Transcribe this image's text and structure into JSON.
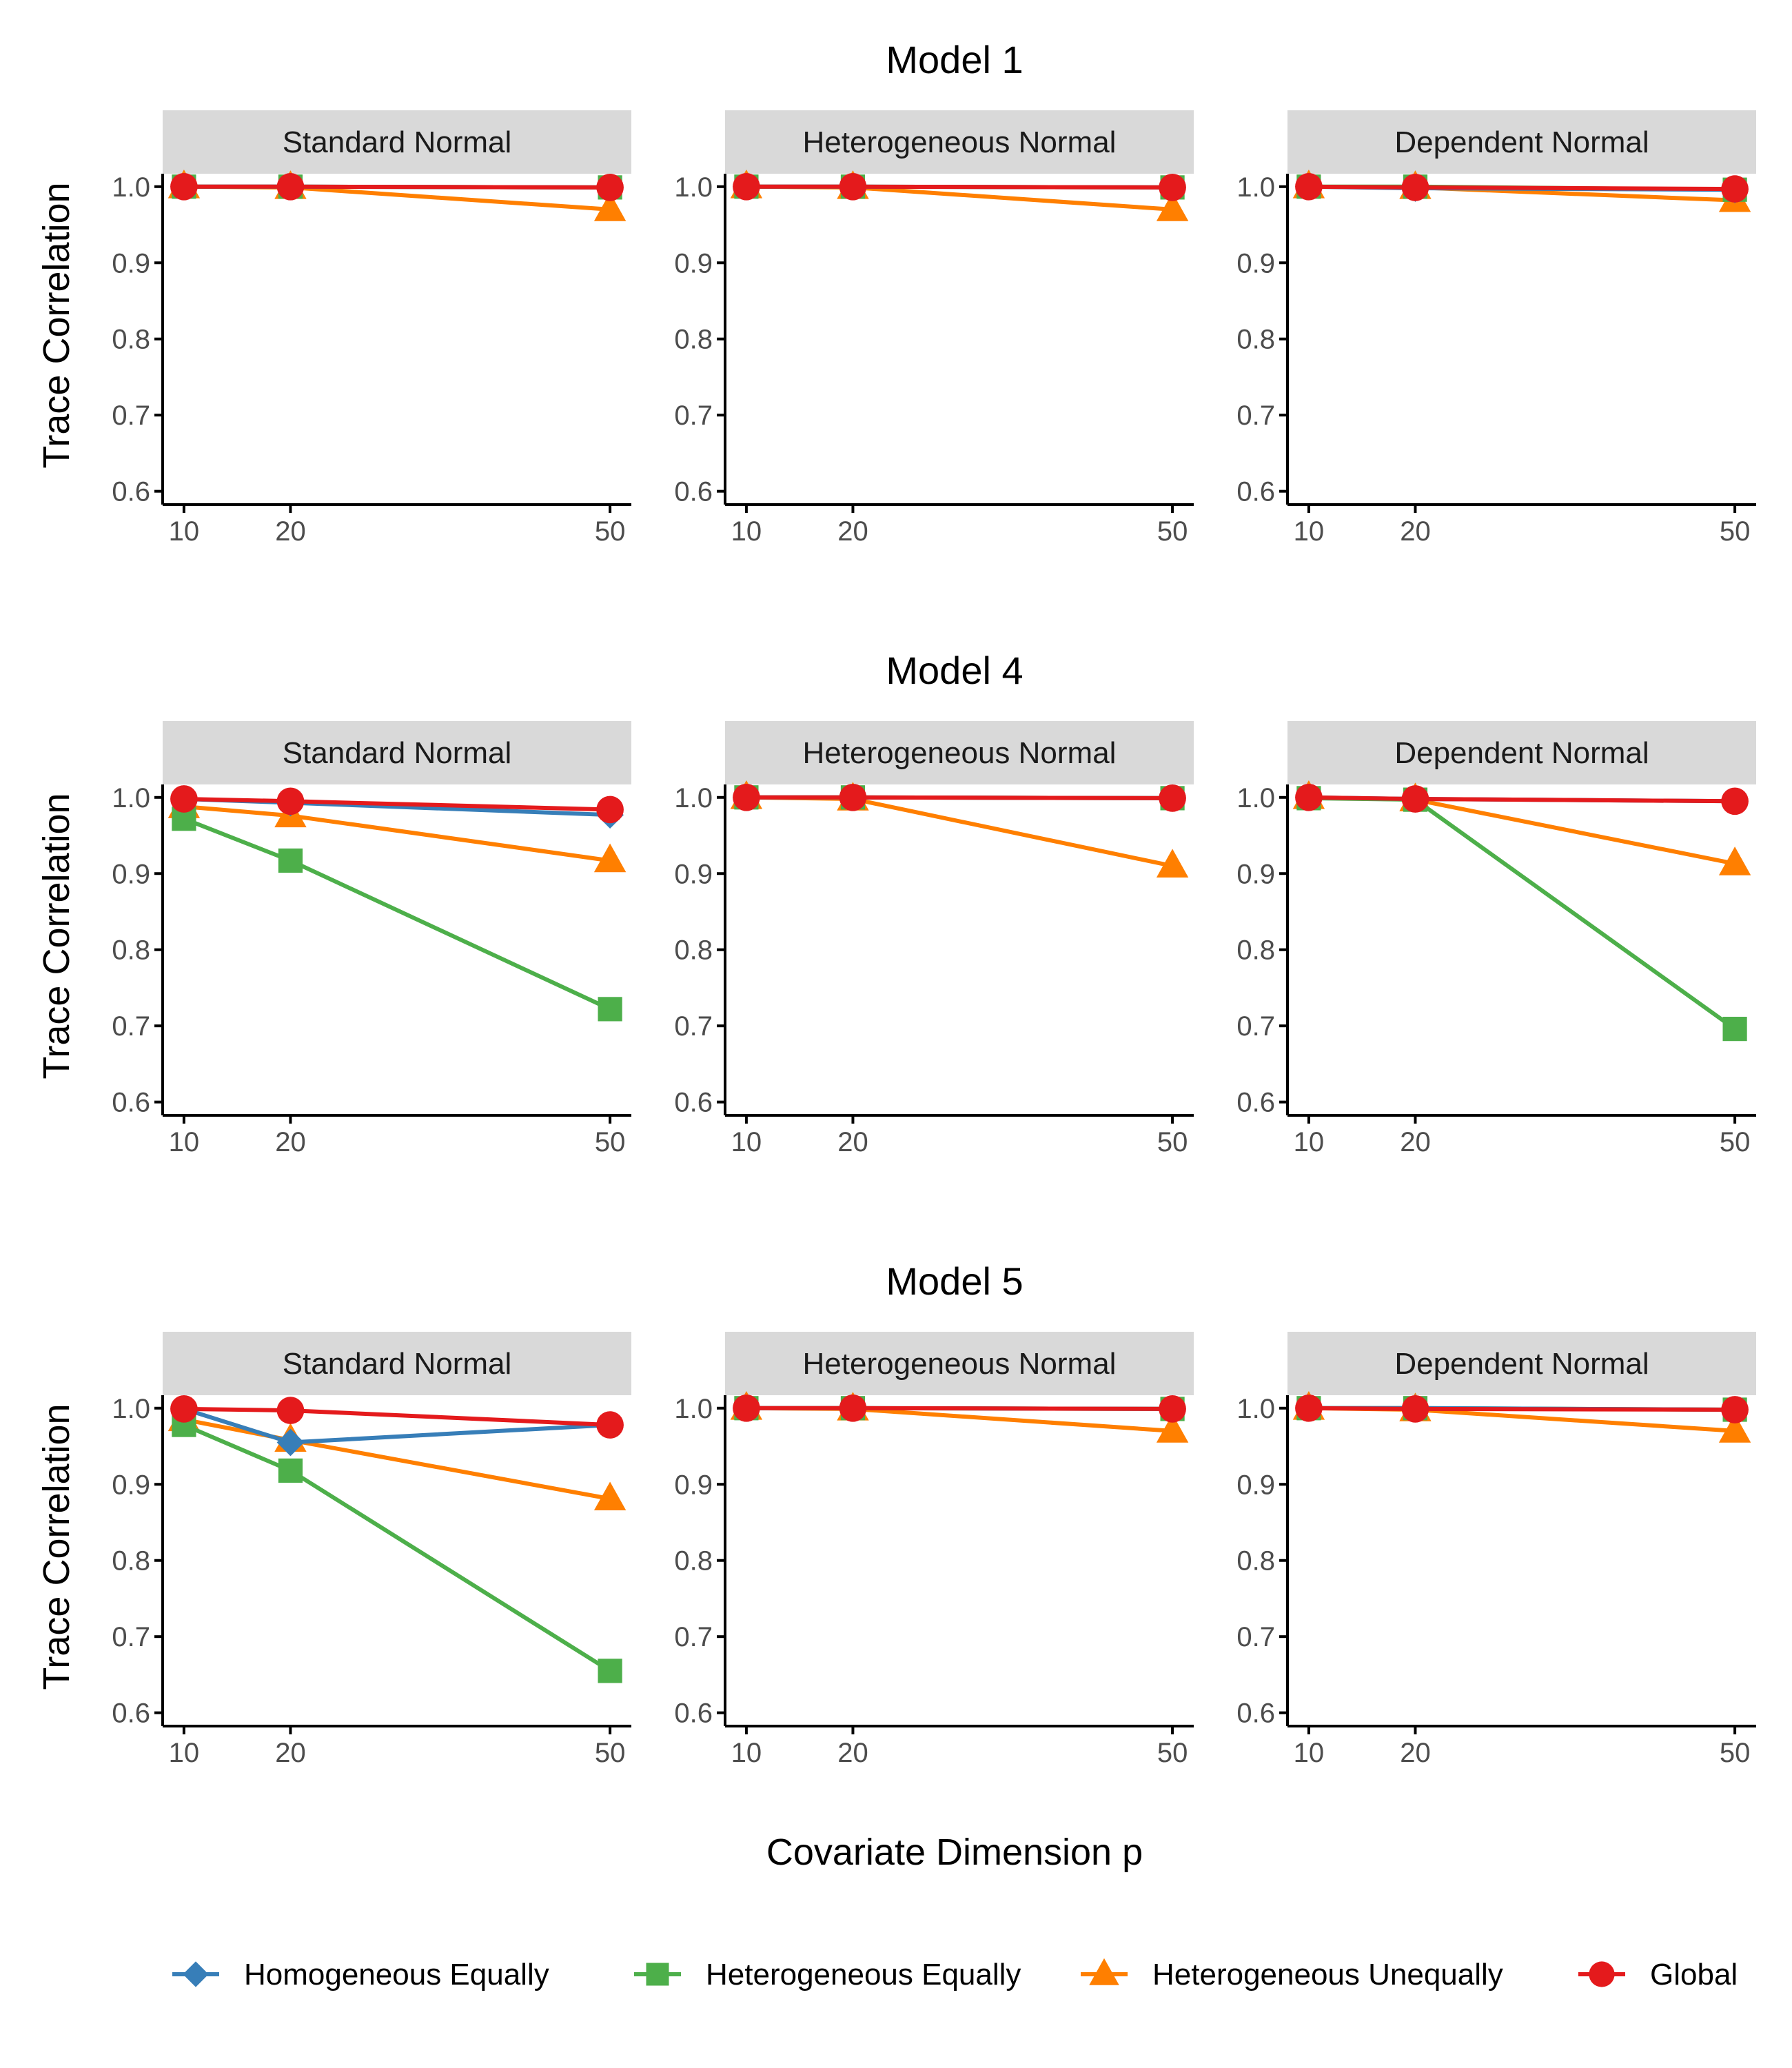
{
  "figure": {
    "xlabel": "Covariate Dimension p",
    "ylabel": "Trace Correlation"
  },
  "legend": {
    "placement": "bottom",
    "items": [
      {
        "name": "Homogeneous Equally",
        "color": "#377eb8",
        "marker": "diamond"
      },
      {
        "name": "Heterogeneous Equally",
        "color": "#4daf4a",
        "marker": "square"
      },
      {
        "name": "Heterogeneous Unequally",
        "color": "#ff7f00",
        "marker": "triangle"
      },
      {
        "name": "Global",
        "color": "#e41a1c",
        "marker": "circle"
      }
    ]
  },
  "chart_data": [
    {
      "type": "line",
      "title": "Model 1",
      "facets": [
        {
          "label": "Standard Normal",
          "x": [
            10,
            20,
            50
          ],
          "xlim": [
            8,
            52
          ],
          "ylim": [
            0.58,
            1.0
          ],
          "xticks": [
            "10",
            "20",
            "50"
          ],
          "yticks": [
            "0.6",
            "0.7",
            "0.8",
            "0.9",
            "1.0"
          ],
          "series": [
            {
              "name": "Homogeneous Equally",
              "values": [
                1.0,
                1.0,
                0.999
              ]
            },
            {
              "name": "Heterogeneous Equally",
              "values": [
                1.0,
                1.0,
                0.999
              ]
            },
            {
              "name": "Heterogeneous Unequally",
              "values": [
                1.0,
                0.999,
                0.97
              ]
            },
            {
              "name": "Global",
              "values": [
                1.0,
                1.0,
                0.999
              ]
            }
          ]
        },
        {
          "label": "Heterogeneous Normal",
          "x": [
            10,
            20,
            50
          ],
          "xlim": [
            8,
            52
          ],
          "ylim": [
            0.58,
            1.0
          ],
          "xticks": [
            "10",
            "20",
            "50"
          ],
          "yticks": [
            "0.6",
            "0.7",
            "0.8",
            "0.9",
            "1.0"
          ],
          "series": [
            {
              "name": "Homogeneous Equally",
              "values": [
                1.0,
                1.0,
                0.999
              ]
            },
            {
              "name": "Heterogeneous Equally",
              "values": [
                1.0,
                1.0,
                0.999
              ]
            },
            {
              "name": "Heterogeneous Unequally",
              "values": [
                1.0,
                0.999,
                0.97
              ]
            },
            {
              "name": "Global",
              "values": [
                1.0,
                1.0,
                0.999
              ]
            }
          ]
        },
        {
          "label": "Dependent Normal",
          "x": [
            10,
            20,
            50
          ],
          "xlim": [
            8,
            52
          ],
          "ylim": [
            0.58,
            1.0
          ],
          "xticks": [
            "10",
            "20",
            "50"
          ],
          "yticks": [
            "0.6",
            "0.7",
            "0.8",
            "0.9",
            "1.0"
          ],
          "series": [
            {
              "name": "Homogeneous Equally",
              "values": [
                1.0,
                0.998,
                0.996
              ]
            },
            {
              "name": "Heterogeneous Equally",
              "values": [
                1.0,
                1.0,
                0.996
              ]
            },
            {
              "name": "Heterogeneous Unequally",
              "values": [
                1.0,
                0.999,
                0.982
              ]
            },
            {
              "name": "Global",
              "values": [
                1.0,
                0.999,
                0.997
              ]
            }
          ]
        }
      ]
    },
    {
      "type": "line",
      "title": "Model 4",
      "facets": [
        {
          "label": "Standard Normal",
          "x": [
            10,
            20,
            50
          ],
          "xlim": [
            8,
            52
          ],
          "ylim": [
            0.58,
            1.0
          ],
          "xticks": [
            "10",
            "20",
            "50"
          ],
          "yticks": [
            "0.6",
            "0.7",
            "0.8",
            "0.9",
            "1.0"
          ],
          "series": [
            {
              "name": "Homogeneous Equally",
              "values": [
                0.998,
                0.993,
                0.977
              ]
            },
            {
              "name": "Heterogeneous Equally",
              "values": [
                0.972,
                0.917,
                0.722
              ]
            },
            {
              "name": "Heterogeneous Unequally",
              "values": [
                0.988,
                0.976,
                0.917
              ]
            },
            {
              "name": "Global",
              "values": [
                0.998,
                0.995,
                0.984
              ]
            }
          ]
        },
        {
          "label": "Heterogeneous Normal",
          "x": [
            10,
            20,
            50
          ],
          "xlim": [
            8,
            52
          ],
          "ylim": [
            0.58,
            1.0
          ],
          "xticks": [
            "10",
            "20",
            "50"
          ],
          "yticks": [
            "0.6",
            "0.7",
            "0.8",
            "0.9",
            "1.0"
          ],
          "series": [
            {
              "name": "Homogeneous Equally",
              "values": [
                1.0,
                1.0,
                0.999
              ]
            },
            {
              "name": "Heterogeneous Equally",
              "values": [
                1.0,
                1.0,
                0.999
              ]
            },
            {
              "name": "Heterogeneous Unequally",
              "values": [
                1.0,
                0.998,
                0.91
              ]
            },
            {
              "name": "Global",
              "values": [
                1.0,
                1.0,
                0.999
              ]
            }
          ]
        },
        {
          "label": "Dependent Normal",
          "x": [
            10,
            20,
            50
          ],
          "xlim": [
            8,
            52
          ],
          "ylim": [
            0.58,
            1.0
          ],
          "xticks": [
            "10",
            "20",
            "50"
          ],
          "yticks": [
            "0.6",
            "0.7",
            "0.8",
            "0.9",
            "1.0"
          ],
          "series": [
            {
              "name": "Homogeneous Equally",
              "values": [
                1.0,
                0.998,
                0.995
              ]
            },
            {
              "name": "Heterogeneous Equally",
              "values": [
                0.999,
                0.997,
                0.696
              ]
            },
            {
              "name": "Heterogeneous Unequally",
              "values": [
                1.0,
                0.997,
                0.913
              ]
            },
            {
              "name": "Global",
              "values": [
                1.0,
                0.998,
                0.995
              ]
            }
          ]
        }
      ]
    },
    {
      "type": "line",
      "title": "Model 5",
      "facets": [
        {
          "label": "Standard Normal",
          "x": [
            10,
            20,
            50
          ],
          "xlim": [
            8,
            52
          ],
          "ylim": [
            0.58,
            1.0
          ],
          "xticks": [
            "10",
            "20",
            "50"
          ],
          "yticks": [
            "0.6",
            "0.7",
            "0.8",
            "0.9",
            "1.0"
          ],
          "series": [
            {
              "name": "Homogeneous Equally",
              "values": [
                0.999,
                0.955,
                0.978
              ]
            },
            {
              "name": "Heterogeneous Equally",
              "values": [
                0.978,
                0.918,
                0.655
              ]
            },
            {
              "name": "Heterogeneous Unequally",
              "values": [
                0.985,
                0.958,
                0.881
              ]
            },
            {
              "name": "Global",
              "values": [
                0.999,
                0.997,
                0.978
              ]
            }
          ]
        },
        {
          "label": "Heterogeneous Normal",
          "x": [
            10,
            20,
            50
          ],
          "xlim": [
            8,
            52
          ],
          "ylim": [
            0.58,
            1.0
          ],
          "xticks": [
            "10",
            "20",
            "50"
          ],
          "yticks": [
            "0.6",
            "0.7",
            "0.8",
            "0.9",
            "1.0"
          ],
          "series": [
            {
              "name": "Homogeneous Equally",
              "values": [
                1.0,
                1.0,
                0.999
              ]
            },
            {
              "name": "Heterogeneous Equally",
              "values": [
                1.0,
                1.0,
                0.999
              ]
            },
            {
              "name": "Heterogeneous Unequally",
              "values": [
                1.0,
                0.999,
                0.97
              ]
            },
            {
              "name": "Global",
              "values": [
                1.0,
                1.0,
                0.999
              ]
            }
          ]
        },
        {
          "label": "Dependent Normal",
          "x": [
            10,
            20,
            50
          ],
          "xlim": [
            8,
            52
          ],
          "ylim": [
            0.58,
            1.0
          ],
          "xticks": [
            "10",
            "20",
            "50"
          ],
          "yticks": [
            "0.6",
            "0.7",
            "0.8",
            "0.9",
            "1.0"
          ],
          "series": [
            {
              "name": "Homogeneous Equally",
              "values": [
                1.0,
                1.0,
                0.998
              ]
            },
            {
              "name": "Heterogeneous Equally",
              "values": [
                1.0,
                1.0,
                0.998
              ]
            },
            {
              "name": "Heterogeneous Unequally",
              "values": [
                1.0,
                0.998,
                0.97
              ]
            },
            {
              "name": "Global",
              "values": [
                1.0,
                0.999,
                0.998
              ]
            }
          ]
        }
      ]
    }
  ]
}
